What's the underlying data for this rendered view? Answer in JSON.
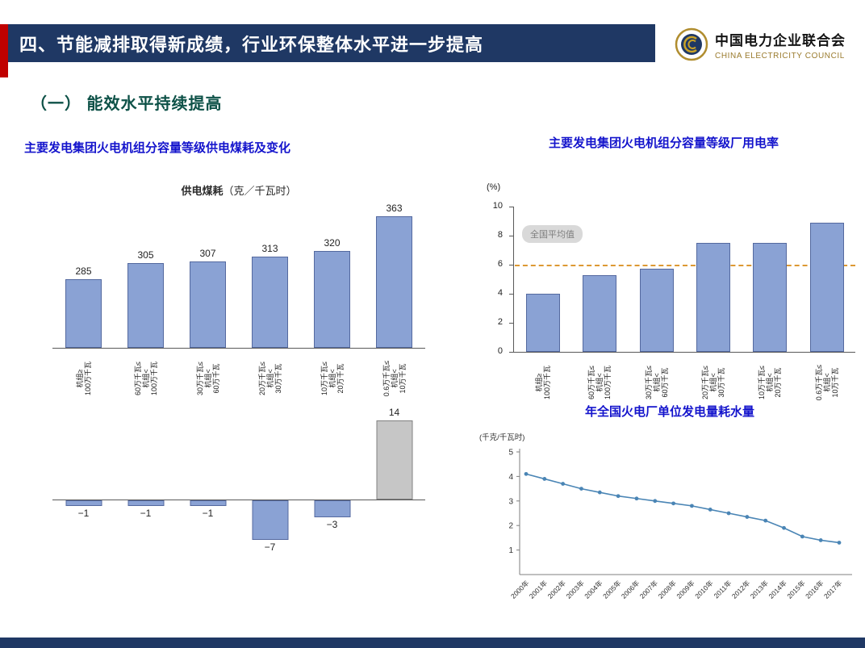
{
  "header": {
    "title": "四、节能减排取得新成绩，行业环保整体水平进一步提高",
    "logo": {
      "cn": "中国电力企业联合会",
      "en": "CHINA ELECTRICITY COUNCIL"
    }
  },
  "section_heading": "（一） 能效水平持续提高",
  "panels": {
    "coal_title": "主要发电集团火电机组分容量等级供电煤耗及变化",
    "aux_title": "主要发电集团火电机组分容量等级厂用电率",
    "water_title": "年全国火电厂单位发电量耗水量"
  },
  "colors": {
    "navy": "#1f3864",
    "accent_red": "#c00000",
    "bar_blue": "#8aa2d4",
    "bar_border": "#54699f",
    "bar_gray": "#c6c6c6",
    "avg_line_orange": "#dd9933",
    "line_blue": "#4a85b5",
    "title_blue": "#1414cc",
    "section_green": "#0d5147"
  },
  "chart_data": [
    {
      "id": "coal",
      "type": "bar",
      "title": "供电煤耗",
      "unit": "（克／千瓦时）",
      "categories": [
        [
          "机组≥",
          "100万千瓦"
        ],
        [
          "60万千瓦≤",
          "机组<",
          "100万千瓦"
        ],
        [
          "30万千瓦≤",
          "机组<",
          "60万千瓦"
        ],
        [
          "20万千瓦≤",
          "机组<",
          "30万千瓦"
        ],
        [
          "10万千瓦≤",
          "机组<",
          "20万千瓦"
        ],
        [
          "0.6万千瓦≤",
          "机组<",
          "10万千瓦"
        ]
      ],
      "values": [
        285,
        305,
        307,
        313,
        320,
        363
      ]
    },
    {
      "id": "coal_change",
      "type": "bar",
      "values": [
        -1,
        -1,
        -1,
        -7,
        -3,
        14
      ],
      "positive_bar_color": "#c6c6c6"
    },
    {
      "id": "aux_power",
      "type": "bar",
      "ylabel": "(%)",
      "ylim": [
        0,
        10
      ],
      "yticks": [
        0,
        2,
        4,
        6,
        8,
        10
      ],
      "values": [
        4.0,
        5.3,
        5.7,
        7.5,
        7.5,
        8.9
      ],
      "average_line": {
        "value": 6,
        "label": "全国平均值"
      },
      "categories": [
        [
          "机组≥",
          "100万千瓦"
        ],
        [
          "60万千瓦≤",
          "机组<",
          "100万千瓦"
        ],
        [
          "30万千瓦≤",
          "机组<",
          "60万千瓦"
        ],
        [
          "20万千瓦≤",
          "机组<",
          "30万千瓦"
        ],
        [
          "10万千瓦≤",
          "机组<",
          "20万千瓦"
        ],
        [
          "0.6万千瓦≤",
          "机组<",
          "10万千瓦"
        ]
      ]
    },
    {
      "id": "water",
      "type": "line",
      "ylabel": "(千克/千瓦时)",
      "ylim": [
        0,
        5
      ],
      "yticks": [
        1,
        2,
        3,
        4,
        5
      ],
      "x": [
        "2000年",
        "2001年",
        "2002年",
        "2003年",
        "2004年",
        "2005年",
        "2006年",
        "2007年",
        "2008年",
        "2009年",
        "2010年",
        "2011年",
        "2012年",
        "2013年",
        "2014年",
        "2015年",
        "2016年",
        "2017年"
      ],
      "values": [
        4.1,
        3.9,
        3.7,
        3.5,
        3.35,
        3.2,
        3.1,
        3.0,
        2.9,
        2.8,
        2.65,
        2.5,
        2.35,
        2.2,
        1.9,
        1.55,
        1.4,
        1.3
      ]
    }
  ]
}
